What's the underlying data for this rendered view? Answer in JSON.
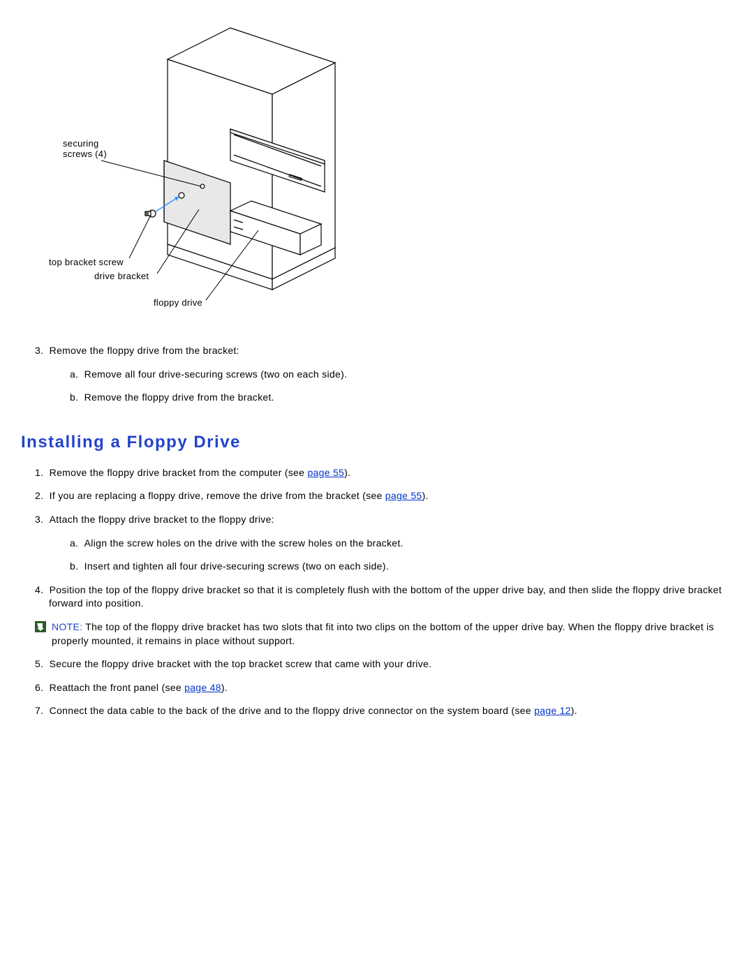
{
  "diagram": {
    "labels": {
      "securing_screws": "securing\nscrews (4)",
      "top_bracket_screw": "top bracket screw",
      "drive_bracket": "drive bracket",
      "floppy_drive": "floppy drive"
    },
    "label_fontsize": 13,
    "label_color": "#000000",
    "leader_arrow_color": "#3399ff",
    "line_color": "#000000",
    "shade_color": "#e8e8e8",
    "bg": "#ffffff"
  },
  "pre_heading_list": {
    "start": 3,
    "items": [
      {
        "n": "3.",
        "text": "Remove the floppy drive from the bracket:",
        "sub": [
          {
            "n": "a.",
            "text": "Remove all four drive-securing screws (two on each side)."
          },
          {
            "n": "b.",
            "text": "Remove the floppy drive from the bracket."
          }
        ]
      }
    ]
  },
  "heading": "Installing a Floppy Drive",
  "install_list": {
    "items": [
      {
        "n": "1.",
        "segments": [
          {
            "text": "Remove the floppy drive bracket from the computer (see "
          },
          {
            "link": "page 55",
            "href": "#"
          },
          {
            "text": ")."
          }
        ]
      },
      {
        "n": "2.",
        "segments": [
          {
            "text": "If you are replacing a floppy drive, remove the drive from the bracket (see "
          },
          {
            "link": "page 55",
            "href": "#"
          },
          {
            "text": ")."
          }
        ]
      },
      {
        "n": "3.",
        "text": "Attach the floppy drive bracket to the floppy drive:",
        "sub": [
          {
            "n": "a.",
            "text": "Align the screw holes on the drive with the screw holes on the bracket."
          },
          {
            "n": "b.",
            "text": "Insert and tighten all four drive-securing screws (two on each side)."
          }
        ]
      },
      {
        "n": "4.",
        "text": "Position the top of the floppy drive bracket so that it is completely flush with the bottom of the upper drive bay, and then slide the floppy drive bracket forward into position."
      }
    ],
    "note": {
      "label": "NOTE:",
      "text": "The top of the floppy drive bracket has two slots that fit into two clips on the bottom of the upper drive bay. When the floppy drive bracket is properly mounted, it remains in place without support."
    },
    "items_after_note": [
      {
        "n": "5.",
        "text": "Secure the floppy drive bracket with the top bracket screw that came with your drive."
      },
      {
        "n": "6.",
        "segments": [
          {
            "text": "Reattach the front panel (see "
          },
          {
            "link": "page 48",
            "href": "#"
          },
          {
            "text": ")."
          }
        ]
      },
      {
        "n": "7.",
        "segments": [
          {
            "text": "Connect the data cable to the back of the drive and to the floppy drive connector on the system board (see "
          },
          {
            "link": "page 12",
            "href": "#"
          },
          {
            "text": ")."
          }
        ]
      }
    ]
  }
}
